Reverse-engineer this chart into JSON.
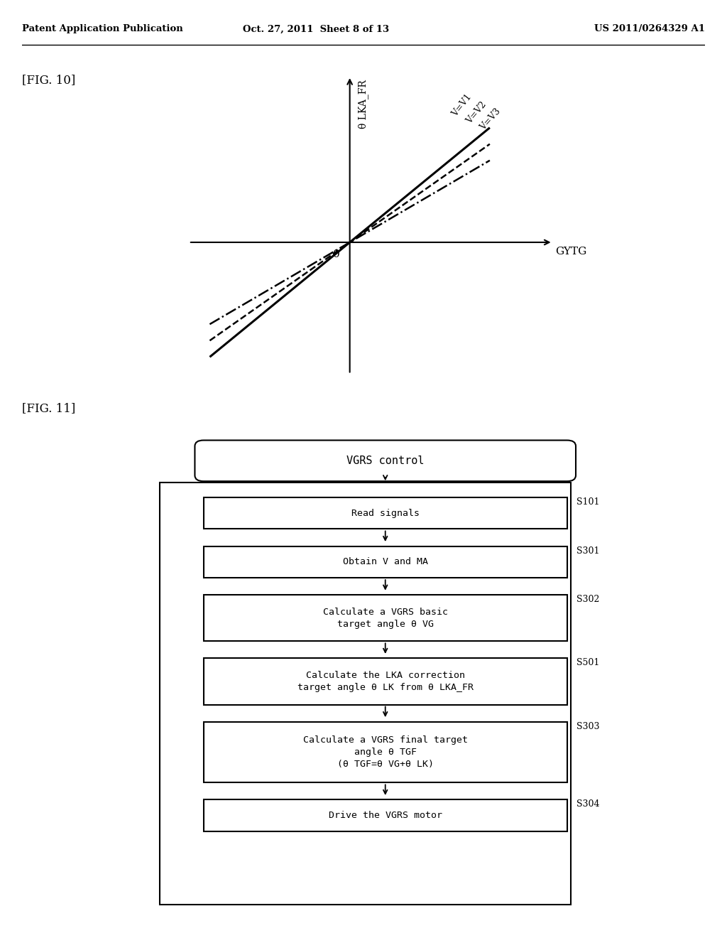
{
  "bg_color": "#ffffff",
  "header_left": "Patent Application Publication",
  "header_center": "Oct. 27, 2011  Sheet 8 of 13",
  "header_right": "US 2011/0264329 A1",
  "fig10_label": "[FIG. 10]",
  "fig11_label": "[FIG. 11]",
  "graph_xlabel": "GYTG",
  "graph_ylabel": "θ LKA_FR",
  "graph_origin_label": "0",
  "line_labels": [
    "V=V1",
    "V=V2",
    "V=V3"
  ],
  "line_styles": [
    "-",
    "--",
    "-."
  ],
  "line_slopes": [
    3.5,
    3.0,
    2.5
  ],
  "flowchart_title": "VGRS control",
  "boxes": [
    {
      "label": "Read signals",
      "tag": "S101",
      "lines": 1
    },
    {
      "label": "Obtain V and MA",
      "tag": "S301",
      "lines": 1
    },
    {
      "label": "Calculate a VGRS basic\ntarget angle θ VG",
      "tag": "S302",
      "lines": 2
    },
    {
      "label": "Calculate the LKA correction\ntarget angle θ LK from θ LKA_FR",
      "tag": "S501",
      "lines": 2
    },
    {
      "label": "Calculate a VGRS final target\nangle θ TGF\n(θ TGF=θ VG+θ LK)",
      "tag": "S303",
      "lines": 3
    },
    {
      "label": "Drive the VGRS motor",
      "tag": "S304",
      "lines": 1
    }
  ]
}
